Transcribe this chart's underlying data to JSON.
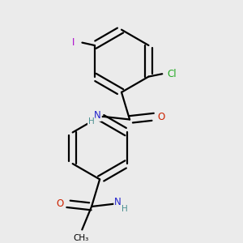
{
  "background_color": "#ebebeb",
  "bond_color": "#000000",
  "atom_colors": {
    "C": "#000000",
    "H": "#4a9090",
    "N": "#2222cc",
    "O": "#cc2200",
    "Cl": "#22aa22",
    "I": "#aa00cc"
  },
  "figsize": [
    3.0,
    3.0
  ],
  "dpi": 100,
  "lw": 1.6,
  "ring_r": 0.115
}
